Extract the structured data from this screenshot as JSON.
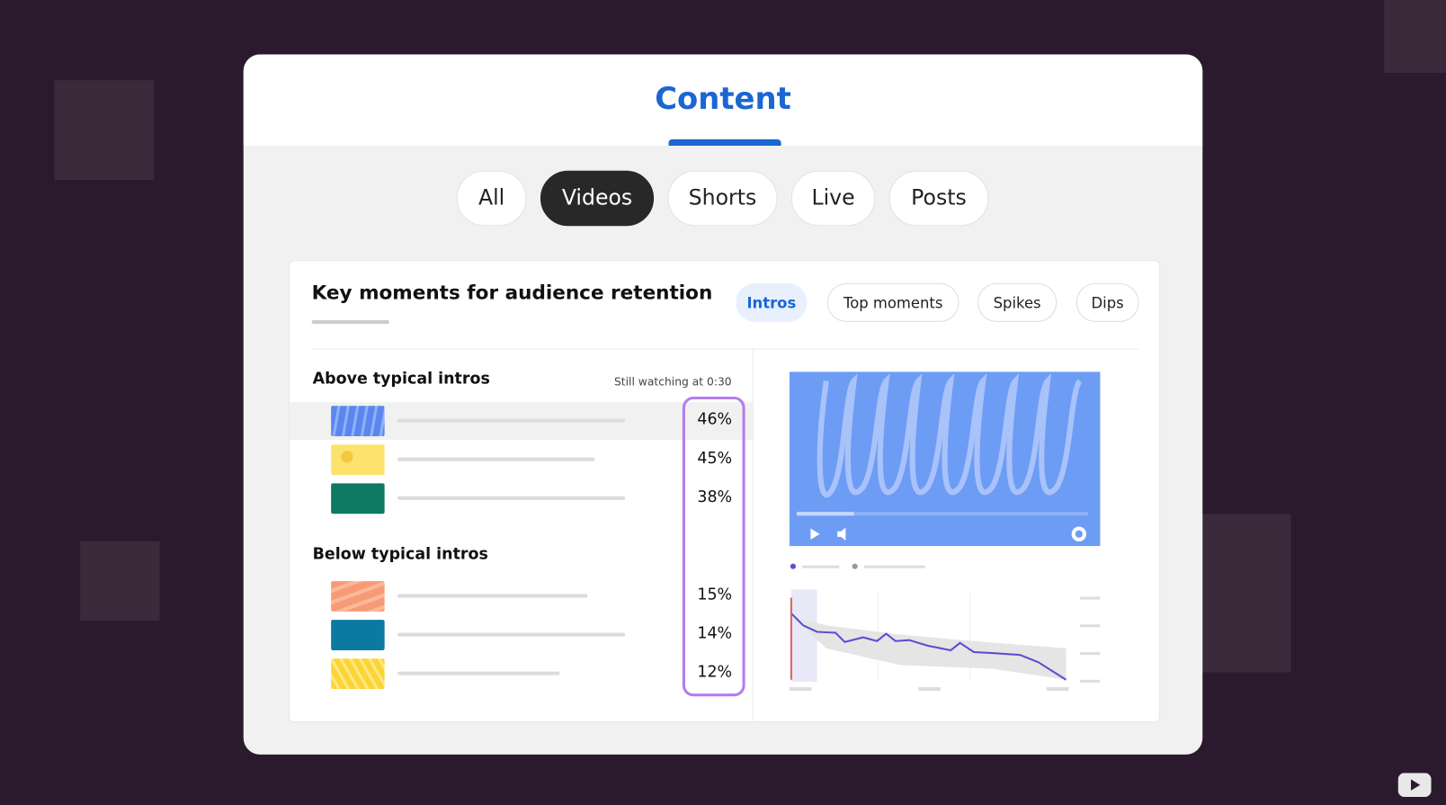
{
  "header": {
    "title": "Content"
  },
  "tabs": [
    "All",
    "Videos",
    "Shorts",
    "Live",
    "Posts"
  ],
  "panel": {
    "title": "Key moments for audience retention",
    "filters": [
      "Intros",
      "Top moments",
      "Spikes",
      "Dips"
    ],
    "sections": [
      {
        "title": "Above typical intros",
        "note": "Still watching at 0:30",
        "rows": [
          "46%",
          "45%",
          "38%"
        ]
      },
      {
        "title": "Below typical intros",
        "rows": [
          "15%",
          "14%",
          "12%"
        ]
      }
    ]
  }
}
